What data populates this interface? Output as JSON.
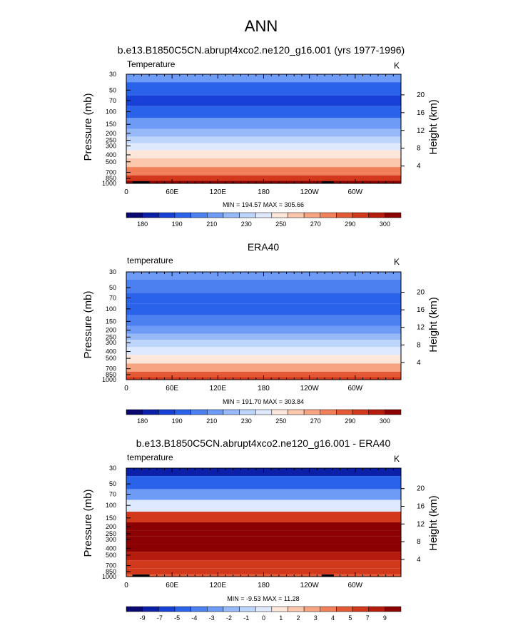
{
  "figure": {
    "title": "ANN"
  },
  "colors": {
    "temperature_scale": [
      "#08086e",
      "#0c1fa8",
      "#1740d6",
      "#2b62ea",
      "#4c7ff0",
      "#6e9bf5",
      "#98b9f8",
      "#bdd4fb",
      "#dfe9fd",
      "#fde6da",
      "#fbc7ad",
      "#f7a482",
      "#f17f5a",
      "#e55a36",
      "#d2381c",
      "#b51c0d",
      "#8b0000"
    ],
    "difference_scale": [
      "#08086e",
      "#0c1fa8",
      "#1740d6",
      "#2b62ea",
      "#4c7ff0",
      "#6e9bf5",
      "#98b9f8",
      "#bdd4fb",
      "#dfe9fd",
      "#fde6da",
      "#fbc7ad",
      "#f7a482",
      "#f17f5a",
      "#e55a36",
      "#d2381c",
      "#b51c0d",
      "#8b0000"
    ],
    "land": "#000000"
  },
  "chart_data": [
    {
      "type": "heatmap",
      "title": "b.e13.B1850C5CN.abrupt4xco2.ne120_g16.001 (yrs 1977-1996)",
      "left_label": "Temperature",
      "units": "K",
      "ylabel": "Pressure (mb)",
      "ylabel_right": "Height (km)",
      "x_ticks": [
        "0",
        "60E",
        "120E",
        "180",
        "120W",
        "60W"
      ],
      "xlim": [
        0,
        360
      ],
      "ylim": [
        1000,
        30
      ],
      "pressure_ticks": [
        30,
        50,
        70,
        100,
        150,
        200,
        250,
        300,
        400,
        500,
        700,
        850,
        1000
      ],
      "height_ticks": [
        4,
        8,
        12,
        16,
        20
      ],
      "stats": "MIN = 194.57  MAX = 305.66",
      "colorbar_labels": [
        "180",
        "190",
        "210",
        "230",
        "250",
        "270",
        "290",
        "300"
      ],
      "profile_levels": [
        30,
        50,
        70,
        100,
        150,
        200,
        250,
        300,
        400,
        500,
        700,
        850,
        1000
      ],
      "profile_values": [
        5,
        3,
        2,
        3,
        5,
        6,
        7,
        8,
        9,
        10,
        12,
        14,
        16
      ],
      "land_lons": [
        [
          8,
          30
        ],
        [
          256,
          272
        ]
      ]
    },
    {
      "type": "heatmap",
      "title": "ERA40",
      "left_label": "temperature",
      "units": "K",
      "ylabel": "Pressure (mb)",
      "ylabel_right": "Height (km)",
      "x_ticks": [
        "0",
        "60E",
        "120E",
        "180",
        "120W",
        "60W"
      ],
      "xlim": [
        0,
        360
      ],
      "ylim": [
        1000,
        30
      ],
      "pressure_ticks": [
        30,
        50,
        70,
        100,
        150,
        200,
        250,
        300,
        400,
        500,
        700,
        850,
        1000
      ],
      "height_ticks": [
        4,
        8,
        12,
        16,
        20
      ],
      "stats": "MIN = 191.70  MAX = 303.84",
      "colorbar_labels": [
        "180",
        "190",
        "210",
        "230",
        "250",
        "270",
        "290",
        "300"
      ],
      "profile_levels": [
        30,
        50,
        70,
        100,
        150,
        200,
        250,
        300,
        400,
        500,
        700,
        850,
        1000
      ],
      "profile_values": [
        5,
        4,
        3,
        3,
        4,
        5,
        6,
        7,
        8,
        9,
        11,
        13,
        14
      ],
      "land_lons": []
    },
    {
      "type": "heatmap",
      "title": "b.e13.B1850C5CN.abrupt4xco2.ne120_g16.001 - ERA40",
      "left_label": "temperature",
      "units": "K",
      "ylabel": "Pressure (mb)",
      "ylabel_right": "Height (km)",
      "x_ticks": [
        "0",
        "60E",
        "120E",
        "180",
        "120W",
        "60W"
      ],
      "xlim": [
        0,
        360
      ],
      "ylim": [
        1000,
        30
      ],
      "pressure_ticks": [
        30,
        50,
        70,
        100,
        150,
        200,
        250,
        300,
        400,
        500,
        700,
        850,
        1000
      ],
      "height_ticks": [
        4,
        8,
        12,
        16,
        20
      ],
      "stats": "MIN =  -9.53  MAX = 11.28",
      "colorbar_labels": [
        "-9",
        "-7",
        "-5",
        "-4",
        "-3",
        "-2",
        "-1",
        "0",
        "1",
        "2",
        "3",
        "4",
        "5",
        "7",
        "9"
      ],
      "profile_levels": [
        30,
        50,
        70,
        100,
        150,
        200,
        250,
        300,
        400,
        500,
        700,
        850,
        1000
      ],
      "profile_values": [
        1,
        3,
        5,
        8,
        14,
        16,
        16,
        16,
        16,
        15,
        14,
        14,
        13
      ],
      "land_lons": [
        [
          8,
          30
        ],
        [
          256,
          272
        ]
      ]
    }
  ]
}
